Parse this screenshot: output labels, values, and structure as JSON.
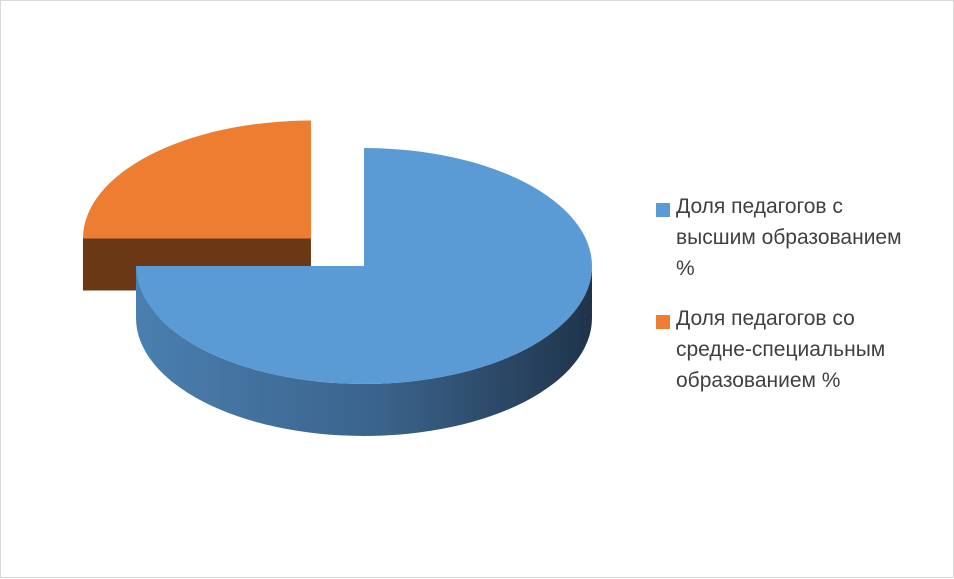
{
  "chart_data": {
    "type": "pie",
    "style": "3d-exploded",
    "slices": [
      {
        "label": "Доля педагогов с\nвысшим образованием\n%",
        "value": 75,
        "color": "#5B9BD5"
      },
      {
        "label": "Доля педагогов со\nсредне-специальным\nобразованием %",
        "value": 25,
        "color": "#ED7D31"
      }
    ],
    "legend_position": "right"
  }
}
